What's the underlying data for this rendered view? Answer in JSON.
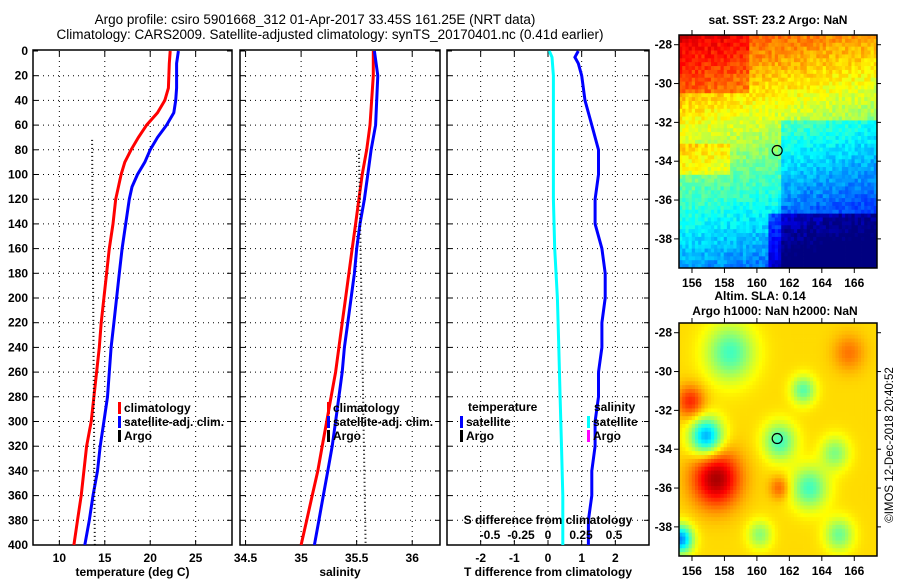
{
  "header": {
    "title_line1": "Argo profile: csiro 5901668_312 01-Apr-2017 33.45S 161.25E (NRT data)",
    "title_line2": "Climatology: CARS2009. Satellite-adjusted climatology: synTS_20170401.nc (0.41d earlier)"
  },
  "colors": {
    "climatology": "#ff0000",
    "satellite_adj": "#0000ff",
    "argo": "#000000",
    "salinity_satellite": "#00ffff",
    "salinity_argo": "#ff00ff"
  },
  "chart_data": [
    {
      "id": "temperature",
      "type": "line",
      "title": "",
      "xlabel": "temperature (deg C)",
      "ylabel": "",
      "xlim": [
        7.1,
        29
      ],
      "ylim": [
        400,
        0
      ],
      "xticks": [
        10,
        15,
        20,
        25
      ],
      "yticks": [
        0,
        20,
        40,
        60,
        80,
        100,
        120,
        140,
        160,
        180,
        200,
        220,
        240,
        260,
        280,
        300,
        320,
        340,
        360,
        380,
        400
      ],
      "grid": true,
      "legend": {
        "placement": "center-right",
        "entries": [
          "climatology",
          "satellite-adj. clim.",
          "Argo"
        ]
      },
      "series": [
        {
          "name": "climatology",
          "color_key": "climatology",
          "depth": [
            0,
            10,
            30,
            40,
            50,
            60,
            70,
            80,
            90,
            100,
            110,
            120,
            140,
            160,
            180,
            200,
            220,
            240,
            260,
            280,
            300,
            320,
            340,
            360,
            380,
            400
          ],
          "values": [
            22.2,
            22.1,
            22.0,
            21.6,
            20.8,
            19.6,
            18.7,
            17.9,
            17.2,
            16.8,
            16.5,
            16.2,
            15.9,
            15.5,
            15.2,
            14.9,
            14.6,
            14.4,
            14.1,
            13.8,
            13.5,
            13.0,
            12.7,
            12.4,
            12.0,
            11.6
          ]
        },
        {
          "name": "satellite-adj. clim.",
          "color_key": "satellite_adj",
          "depth": [
            0,
            10,
            30,
            40,
            50,
            60,
            70,
            80,
            90,
            100,
            110,
            120,
            140,
            160,
            180,
            200,
            220,
            240,
            260,
            280,
            300,
            320,
            340,
            360,
            380,
            400
          ],
          "values": [
            23.1,
            22.9,
            22.9,
            22.8,
            22.6,
            21.8,
            20.8,
            20.0,
            19.4,
            18.6,
            18.0,
            17.7,
            17.3,
            16.9,
            16.6,
            16.3,
            16.0,
            15.7,
            15.5,
            15.3,
            14.9,
            14.5,
            14.2,
            13.7,
            13.3,
            12.8
          ]
        },
        {
          "name": "Argo",
          "color_key": "argo",
          "style": "dotted",
          "depth": [
            72,
            400
          ],
          "values": [
            13.6,
            13.9
          ]
        }
      ]
    },
    {
      "id": "salinity",
      "type": "line",
      "xlabel": "salinity",
      "xlim": [
        34.45,
        36.25
      ],
      "ylim": [
        400,
        0
      ],
      "xticks": [
        34.5,
        35,
        35.5,
        36
      ],
      "grid": true,
      "legend": {
        "placement": "center-right",
        "entries": [
          "climatology",
          "satellite-adj. clim.",
          "Argo"
        ]
      },
      "series": [
        {
          "name": "climatology",
          "color_key": "climatology",
          "depth": [
            0,
            20,
            60,
            80,
            100,
            120,
            140,
            160,
            180,
            200,
            220,
            240,
            260,
            280,
            300,
            320,
            340,
            360,
            380,
            400
          ],
          "values": [
            35.65,
            35.65,
            35.62,
            35.59,
            35.55,
            35.52,
            35.49,
            35.46,
            35.43,
            35.4,
            35.37,
            35.34,
            35.31,
            35.27,
            35.23,
            35.19,
            35.15,
            35.1,
            35.05,
            35.0
          ]
        },
        {
          "name": "satellite-adj. clim.",
          "color_key": "satellite_adj",
          "depth": [
            0,
            20,
            60,
            80,
            100,
            120,
            140,
            160,
            180,
            200,
            220,
            240,
            260,
            280,
            300,
            320,
            340,
            360,
            380,
            400
          ],
          "values": [
            35.66,
            35.69,
            35.67,
            35.63,
            35.6,
            35.57,
            35.53,
            35.5,
            35.48,
            35.45,
            35.42,
            35.39,
            35.37,
            35.34,
            35.31,
            35.28,
            35.24,
            35.2,
            35.16,
            35.12
          ]
        },
        {
          "name": "Argo",
          "color_key": "argo",
          "style": "dotted",
          "depth": [
            80,
            400
          ],
          "values": [
            35.52,
            35.58
          ]
        }
      ]
    },
    {
      "id": "difference",
      "type": "line",
      "xlabel": "T difference from climatology",
      "x2label": "S difference from climatology",
      "xlim": [
        -3,
        3
      ],
      "x2lim": [
        -0.75,
        0.75
      ],
      "ylim": [
        400,
        0
      ],
      "xticks": [
        -2,
        -1,
        0,
        1,
        2
      ],
      "x2ticks": [
        "-0.5",
        "-0.25",
        "0",
        "0.25",
        "0.5"
      ],
      "grid": true,
      "legend": {
        "placement": "center",
        "temperature_heading": "temperature",
        "salinity_heading": "salinity",
        "entries": [
          "satellite",
          "Argo",
          "satellite",
          "Argo"
        ]
      },
      "series": [
        {
          "name": "temperature satellite",
          "color_key": "satellite_adj",
          "depth": [
            0,
            5,
            10,
            20,
            40,
            60,
            80,
            100,
            120,
            140,
            160,
            180,
            200,
            220,
            240,
            260,
            280,
            300,
            320,
            340,
            360,
            380,
            400
          ],
          "values": [
            0.9,
            0.8,
            0.9,
            1.0,
            1.1,
            1.3,
            1.5,
            1.5,
            1.4,
            1.4,
            1.6,
            1.7,
            1.7,
            1.6,
            1.6,
            1.5,
            1.5,
            1.4,
            1.4,
            1.3,
            1.3,
            1.2,
            1.2
          ]
        },
        {
          "name": "salinity satellite",
          "color_key": "salinity_satellite",
          "axis": "x2",
          "depth": [
            0,
            5,
            20,
            40,
            80,
            120,
            160,
            200,
            240,
            280,
            320,
            360,
            400
          ],
          "values": [
            0.01,
            0.03,
            0.04,
            0.04,
            0.04,
            0.04,
            0.05,
            0.07,
            0.08,
            0.09,
            0.1,
            0.11,
            0.11
          ]
        }
      ]
    }
  ],
  "maps": {
    "sst": {
      "title": "sat. SST: 23.2 Argo: NaN",
      "lon_ticks": [
        "156",
        "158",
        "160",
        "162",
        "164",
        "166"
      ],
      "lat_ticks": [
        "-28",
        "-30",
        "-32",
        "-34",
        "-36",
        "-38"
      ],
      "lon_range": [
        155.2,
        167.4
      ],
      "lat_range": [
        -39.5,
        -27.5
      ],
      "marker": {
        "lon": 161.25,
        "lat": -33.45
      }
    },
    "sla": {
      "title_line1": "Altim. SLA: 0.14",
      "title_line2": "Argo h1000: NaN h2000: NaN",
      "lon_ticks": [
        "156",
        "158",
        "160",
        "162",
        "164",
        "166"
      ],
      "lat_ticks": [
        "-28",
        "-30",
        "-32",
        "-34",
        "-36",
        "-38"
      ],
      "lon_range": [
        155.2,
        167.4
      ],
      "lat_range": [
        -39.5,
        -27.5
      ],
      "marker": {
        "lon": 161.25,
        "lat": -33.45
      }
    },
    "credit": "©IMOS 12-Dec-2018 20:40:52"
  }
}
